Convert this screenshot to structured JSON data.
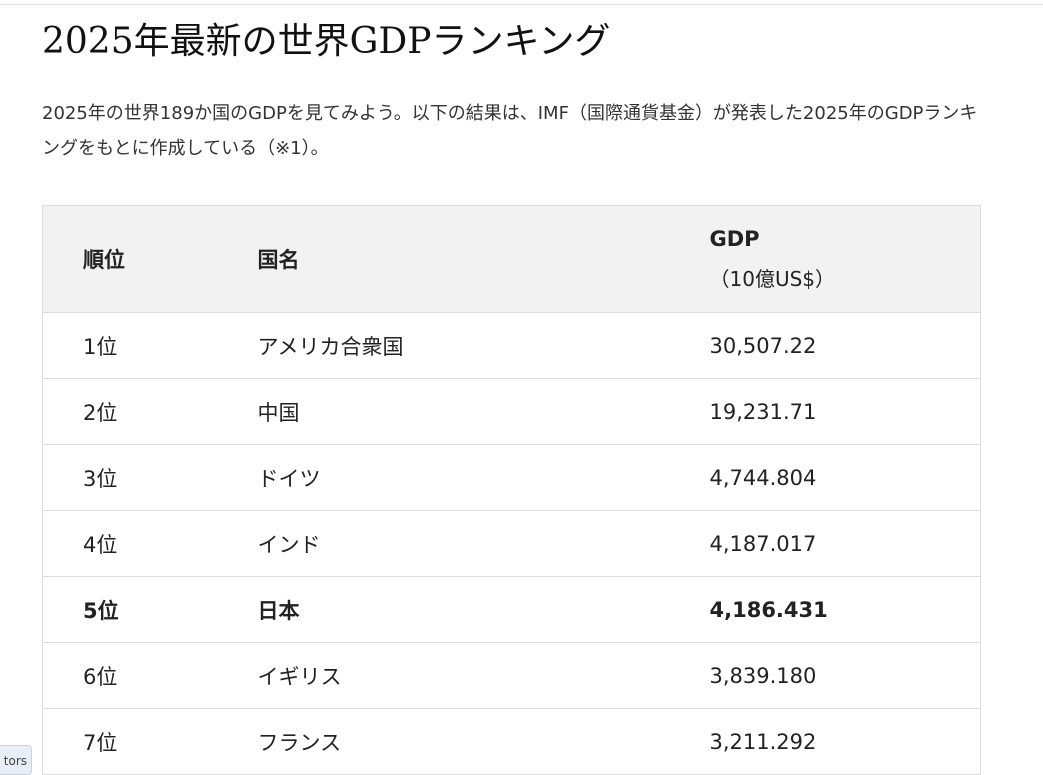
{
  "article": {
    "title": "2025年最新の世界GDPランキング",
    "intro": "2025年の世界189か国のGDPを見てみよう。以下の結果は、IMF（国際通貨基金）が発表した2025年のGDPランキングをもとに作成している（※1）。"
  },
  "table": {
    "headers": {
      "rank": "順位",
      "country": "国名",
      "gdp": "GDP",
      "gdp_unit": "（10億US$）"
    },
    "rows": [
      {
        "rank": "1位",
        "country": "アメリカ合衆国",
        "gdp": "30,507.22",
        "highlight": false
      },
      {
        "rank": "2位",
        "country": "中国",
        "gdp": "19,231.71",
        "highlight": false
      },
      {
        "rank": "3位",
        "country": "ドイツ",
        "gdp": "4,744.804",
        "highlight": false
      },
      {
        "rank": "4位",
        "country": "インド",
        "gdp": "4,187.017",
        "highlight": false
      },
      {
        "rank": "5位",
        "country": "日本",
        "gdp": "4,186.431",
        "highlight": true
      },
      {
        "rank": "6位",
        "country": "イギリス",
        "gdp": "3,839.180",
        "highlight": false
      },
      {
        "rank": "7位",
        "country": "フランス",
        "gdp": "3,211.292",
        "highlight": false
      }
    ]
  },
  "side_tab": {
    "label": "tors"
  }
}
